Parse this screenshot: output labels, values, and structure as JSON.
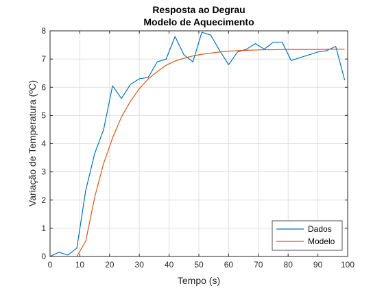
{
  "chart_data": {
    "type": "line",
    "title": [
      "Resposta ao Degrau",
      "Modelo de Aquecimento"
    ],
    "xlabel": "Tempo (s)",
    "ylabel": "Variação de Temperatura (ºC)",
    "xlim": [
      0,
      100
    ],
    "ylim": [
      0,
      8
    ],
    "xticks": [
      0,
      10,
      20,
      30,
      40,
      50,
      60,
      70,
      80,
      90,
      100
    ],
    "yticks": [
      0,
      1,
      2,
      3,
      4,
      5,
      6,
      7,
      8
    ],
    "grid": true,
    "legend_position": "bottom-right",
    "series": [
      {
        "name": "Dados",
        "color": "#0072BD",
        "x": [
          0,
          3,
          6,
          9,
          12,
          15,
          18,
          21,
          24,
          27,
          30,
          33,
          36,
          39,
          42,
          45,
          48,
          51,
          54,
          57,
          60,
          63,
          66,
          69,
          72,
          75,
          78,
          81,
          84,
          87,
          90,
          93,
          96,
          99
        ],
        "y": [
          0,
          0.15,
          0.05,
          0.3,
          2.35,
          3.65,
          4.5,
          6.05,
          5.6,
          6.1,
          6.3,
          6.35,
          6.9,
          7.0,
          7.8,
          7.15,
          6.9,
          7.95,
          7.85,
          7.3,
          6.8,
          7.25,
          7.35,
          7.55,
          7.35,
          7.6,
          7.6,
          6.95,
          7.05,
          7.15,
          7.25,
          7.3,
          7.45,
          6.25
        ]
      },
      {
        "name": "Modelo",
        "color": "#D95319",
        "x": [
          9,
          12,
          15,
          18,
          21,
          24,
          27,
          30,
          33,
          36,
          39,
          42,
          45,
          48,
          51,
          54,
          57,
          60,
          63,
          66,
          69,
          72,
          75,
          78,
          81,
          84,
          87,
          90,
          93,
          96,
          99
        ],
        "y": [
          0,
          0.55,
          2.1,
          3.3,
          4.2,
          4.95,
          5.5,
          5.95,
          6.3,
          6.55,
          6.78,
          6.93,
          7.03,
          7.11,
          7.17,
          7.21,
          7.25,
          7.28,
          7.3,
          7.31,
          7.32,
          7.33,
          7.33,
          7.34,
          7.34,
          7.34,
          7.34,
          7.34,
          7.35,
          7.35,
          7.35
        ]
      }
    ]
  }
}
